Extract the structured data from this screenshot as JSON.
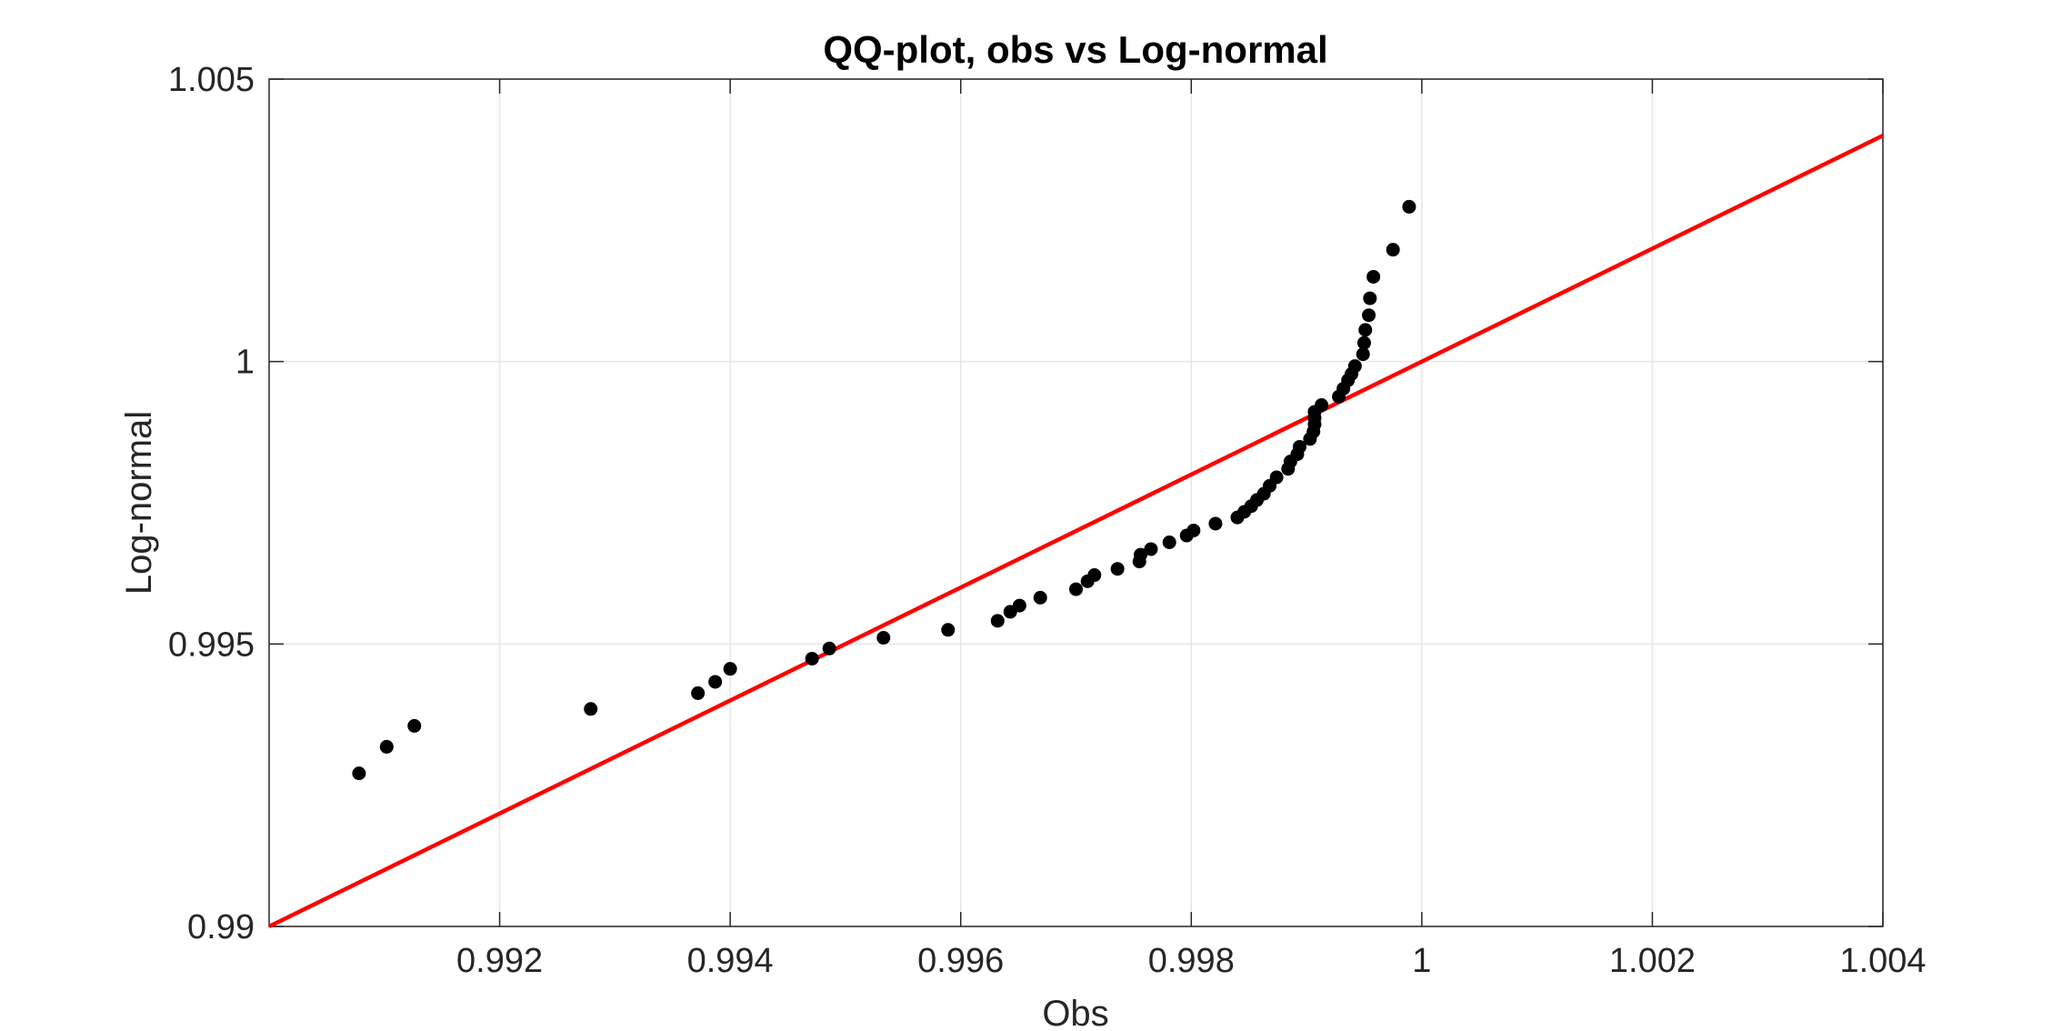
{
  "chart_data": {
    "type": "scatter",
    "title": "QQ-plot, obs vs Log-normal",
    "xlabel": "Obs",
    "ylabel": "Log-normal",
    "xlim": [
      0.99,
      1.004
    ],
    "ylim": [
      0.99,
      1.005
    ],
    "xticks": [
      0.992,
      0.994,
      0.996,
      0.998,
      1,
      1.002,
      1.004
    ],
    "xtick_labels": [
      "0.992",
      "0.994",
      "0.996",
      "0.998",
      "1",
      "1.002",
      "1.004"
    ],
    "yticks": [
      0.99,
      0.995,
      1,
      1.005
    ],
    "ytick_labels": [
      "0.99",
      "0.995",
      "1",
      "1.005"
    ],
    "grid": true,
    "colors": {
      "points": "#000000",
      "reference_line": "#ff0000",
      "grid": "#e6e6e6",
      "axes": "#262626"
    },
    "reference_line": {
      "x": [
        0.99,
        1.004
      ],
      "y": [
        0.99,
        1.004
      ]
    },
    "series": [
      {
        "marker": "filled-circle",
        "points": [
          [
            0.99078,
            0.99271
          ],
          [
            0.99102,
            0.99318
          ],
          [
            0.99126,
            0.99355
          ],
          [
            0.99279,
            0.99385
          ],
          [
            0.99372,
            0.99413
          ],
          [
            0.99387,
            0.99433
          ],
          [
            0.994,
            0.99456
          ],
          [
            0.99471,
            0.99474
          ],
          [
            0.99486,
            0.99492
          ],
          [
            0.99533,
            0.99511
          ],
          [
            0.99589,
            0.99525
          ],
          [
            0.99632,
            0.99541
          ],
          [
            0.99643,
            0.99557
          ],
          [
            0.99651,
            0.99568
          ],
          [
            0.99669,
            0.99582
          ],
          [
            0.997,
            0.99597
          ],
          [
            0.9971,
            0.99611
          ],
          [
            0.99716,
            0.99622
          ],
          [
            0.99736,
            0.99633
          ],
          [
            0.99755,
            0.99646
          ],
          [
            0.99756,
            0.99658
          ],
          [
            0.99765,
            0.99668
          ],
          [
            0.99781,
            0.9968
          ],
          [
            0.99796,
            0.99692
          ],
          [
            0.99802,
            0.99701
          ],
          [
            0.99821,
            0.99713
          ],
          [
            0.9984,
            0.99724
          ],
          [
            0.99846,
            0.99734
          ],
          [
            0.99852,
            0.99744
          ],
          [
            0.99857,
            0.99755
          ],
          [
            0.99863,
            0.99766
          ],
          [
            0.99868,
            0.9978
          ],
          [
            0.99874,
            0.99795
          ],
          [
            0.99884,
            0.9981
          ],
          [
            0.99886,
            0.99823
          ],
          [
            0.99892,
            0.99836
          ],
          [
            0.99894,
            0.99849
          ],
          [
            0.99903,
            0.99863
          ],
          [
            0.99906,
            0.99876
          ],
          [
            0.99907,
            0.99889
          ],
          [
            0.99907,
            0.999
          ],
          [
            0.99907,
            0.99911
          ],
          [
            0.99913,
            0.99923
          ],
          [
            0.99928,
            0.99938
          ],
          [
            0.99932,
            0.99952
          ],
          [
            0.99936,
            0.99967
          ],
          [
            0.99939,
            0.99978
          ],
          [
            0.99942,
            0.99992
          ],
          [
            0.99949,
            1.00013
          ],
          [
            0.9995,
            1.00033
          ],
          [
            0.99951,
            1.00056
          ],
          [
            0.99954,
            1.00082
          ],
          [
            0.99955,
            1.00112
          ],
          [
            0.99958,
            1.0015
          ],
          [
            0.99975,
            1.00198
          ],
          [
            0.99989,
            1.00274
          ]
        ]
      }
    ]
  }
}
